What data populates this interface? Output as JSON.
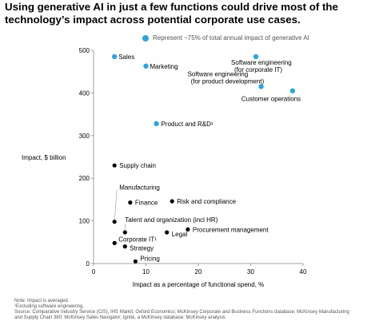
{
  "title": "Using generative AI in just a few functions could drive most of the technology’s impact across potential corporate use cases.",
  "legend_text": "Represent ~75% of total annual impact of generative AI",
  "notes": [
    "Note: Impact is averaged.",
    "¹Excluding software engineering.",
    "Source: Comparative Industry Service (CIS), IHS Markit; Oxford Economics; McKinsey Corporate and Business Functions database; McKinsey Manufacturing",
    "and Supply Chain 360; McKinsey Sales Navigator; Ignite, a McKinsey database; McKinsey analysis"
  ],
  "colors": {
    "highlight": "#2ea3e0",
    "other": "#000000",
    "axis": "#888888"
  },
  "chart_data": {
    "type": "scatter",
    "title": "Using generative AI in just a few functions could drive most of the technology’s impact across potential corporate use cases.",
    "xlabel": "Impact as a percentage of functional spend, %",
    "ylabel": "Impact, $ billion",
    "xlim": [
      0,
      40
    ],
    "ylim": [
      0,
      500
    ],
    "x_ticks": [
      "0",
      "10",
      "20",
      "30",
      "40"
    ],
    "y_ticks": [
      "0",
      "100",
      "200",
      "300",
      "400",
      "500"
    ],
    "legend": "Represent ~75% of total annual impact of generative AI",
    "points": [
      {
        "label": "Sales",
        "x": 4,
        "y": 485,
        "highlight": true
      },
      {
        "label": "Marketing",
        "x": 10,
        "y": 463,
        "highlight": true
      },
      {
        "label": "Software engineering\n(for corporate IT)",
        "x": 31,
        "y": 485,
        "highlight": true
      },
      {
        "label": "Software engineering\n(for product development)",
        "x": 32,
        "y": 415,
        "highlight": true
      },
      {
        "label": "Customer operations",
        "x": 38,
        "y": 405,
        "highlight": true
      },
      {
        "label": "Product and R&D¹",
        "x": 12,
        "y": 328,
        "highlight": true
      },
      {
        "label": "Supply chain",
        "x": 4,
        "y": 230,
        "highlight": false
      },
      {
        "label": "Manufacturing",
        "x": 4,
        "y": 98,
        "highlight": false
      },
      {
        "label": "Finance",
        "x": 7,
        "y": 143,
        "highlight": false
      },
      {
        "label": "Risk and compliance",
        "x": 15,
        "y": 146,
        "highlight": false
      },
      {
        "label": "Talent and organization (incl HR)",
        "x": 6,
        "y": 73,
        "highlight": false
      },
      {
        "label": "Procurement management",
        "x": 18,
        "y": 80,
        "highlight": false
      },
      {
        "label": "Legal",
        "x": 14,
        "y": 73,
        "highlight": false
      },
      {
        "label": "Corporate IT¹",
        "x": 4,
        "y": 48,
        "highlight": false
      },
      {
        "label": "Strategy",
        "x": 6,
        "y": 40,
        "highlight": false
      },
      {
        "label": "Pricing",
        "x": 8,
        "y": 5,
        "highlight": false
      }
    ]
  }
}
